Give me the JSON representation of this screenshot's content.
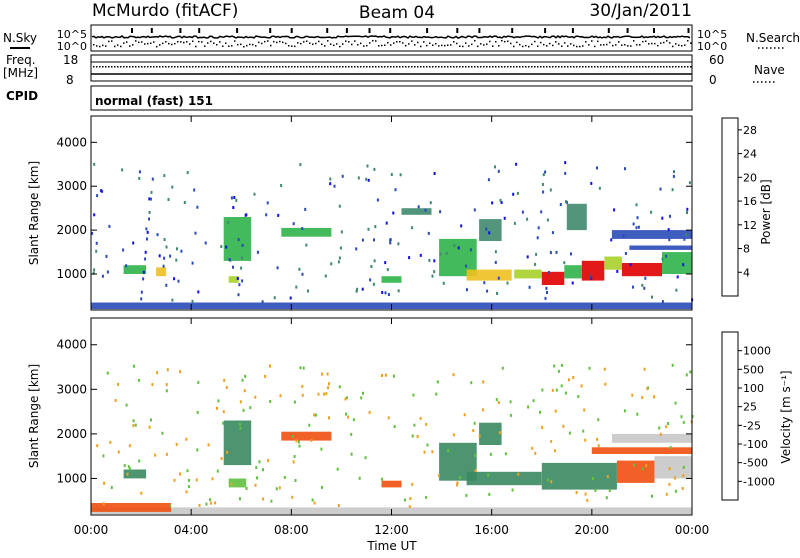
{
  "header": {
    "station": "McMurdo (fitACF)",
    "beam": "Beam 04",
    "date": "30/Jan/2011"
  },
  "strip": {
    "nsky_label": "N.Sky",
    "nsearch_label": "N.Search",
    "left_top_tick": "10^5",
    "left_bottom_tick": "10^0",
    "right_top_tick": "10^5",
    "right_bottom_tick": "10^0",
    "freq_label_1": "Freq.",
    "freq_label_2": "[MHz]",
    "freq_top": "18",
    "freq_bottom": "8",
    "nave_label": "Nave",
    "nave_top": "60",
    "nave_bottom": "0",
    "cpid_label": "CPID",
    "cpid_text": "normal (fast) 151"
  },
  "panels": {
    "ylabel": "Slant Range [km]",
    "xlabel": "Time UT",
    "power_colorbar_label": "Power [dB]",
    "velocity_colorbar_label": "Velocity [m s⁻¹]"
  },
  "colors": {
    "power_scale": [
      "#1010e6",
      "#2a4ab8",
      "#3f8a6e",
      "#2fb34a",
      "#a8d02a",
      "#f0c020",
      "#f08a10",
      "#e84010",
      "#e00000"
    ],
    "velocity_scale": [
      "#e00000",
      "#f05010",
      "#f0a020",
      "#c8c8c8",
      "#b0b0b0",
      "#60c040",
      "#3a8a60",
      "#2a5aa8",
      "#1a3ab0"
    ]
  },
  "chart_data": [
    {
      "type": "heatmap",
      "title": "Power",
      "xlabel": "Time UT",
      "ylabel": "Slant Range [km]",
      "xlim": [
        "00:00",
        "24:00"
      ],
      "ylim": [
        180,
        4600
      ],
      "x_ticks": [
        "00:00",
        "04:00",
        "08:00",
        "12:00",
        "16:00",
        "20:00",
        "00:00"
      ],
      "y_ticks": [
        1000,
        2000,
        3000,
        4000
      ],
      "colorbar": {
        "label": "Power [dB]",
        "ticks": [
          4,
          8,
          12,
          16,
          20,
          24,
          28
        ],
        "range": [
          0,
          30
        ]
      },
      "regions": [
        {
          "t0": 0.0,
          "t1": 24.0,
          "r0": 200,
          "r1": 350,
          "value": 6
        },
        {
          "t0": 1.3,
          "t1": 2.2,
          "r0": 1000,
          "r1": 1200,
          "value": 10
        },
        {
          "t0": 2.6,
          "t1": 3.0,
          "r0": 950,
          "r1": 1150,
          "value": 18
        },
        {
          "t0": 5.3,
          "t1": 6.4,
          "r0": 1300,
          "r1": 2300,
          "value": 10
        },
        {
          "t0": 5.5,
          "t1": 5.9,
          "r0": 800,
          "r1": 950,
          "value": 16
        },
        {
          "t0": 7.6,
          "t1": 9.6,
          "r0": 1850,
          "r1": 2050,
          "value": 10
        },
        {
          "t0": 11.6,
          "t1": 12.4,
          "r0": 800,
          "r1": 950,
          "value": 12
        },
        {
          "t0": 12.4,
          "t1": 13.6,
          "r0": 2350,
          "r1": 2500,
          "value": 8
        },
        {
          "t0": 13.9,
          "t1": 15.4,
          "r0": 950,
          "r1": 1800,
          "value": 12
        },
        {
          "t0": 15.0,
          "t1": 16.8,
          "r0": 850,
          "r1": 1100,
          "value": 18
        },
        {
          "t0": 15.5,
          "t1": 16.4,
          "r0": 1750,
          "r1": 2250,
          "value": 8
        },
        {
          "t0": 16.9,
          "t1": 18.0,
          "r0": 900,
          "r1": 1100,
          "value": 14
        },
        {
          "t0": 18.0,
          "t1": 18.9,
          "r0": 750,
          "r1": 1050,
          "value": 28
        },
        {
          "t0": 18.9,
          "t1": 19.6,
          "r0": 900,
          "r1": 1200,
          "value": 12
        },
        {
          "t0": 19.6,
          "t1": 20.5,
          "r0": 850,
          "r1": 1300,
          "value": 28
        },
        {
          "t0": 20.5,
          "t1": 21.2,
          "r0": 1100,
          "r1": 1400,
          "value": 14
        },
        {
          "t0": 21.2,
          "t1": 22.8,
          "r0": 950,
          "r1": 1250,
          "value": 28
        },
        {
          "t0": 22.8,
          "t1": 24.0,
          "r0": 1000,
          "r1": 1500,
          "value": 12
        },
        {
          "t0": 21.5,
          "t1": 24.0,
          "r0": 1550,
          "r1": 1650,
          "value": 6
        },
        {
          "t0": 20.8,
          "t1": 24.0,
          "r0": 1800,
          "r1": 2000,
          "value": 6
        },
        {
          "t0": 19.0,
          "t1": 19.8,
          "r0": 2000,
          "r1": 2600,
          "value": 8
        }
      ]
    },
    {
      "type": "heatmap",
      "title": "Velocity",
      "xlabel": "Time UT",
      "ylabel": "Slant Range [km]",
      "xlim": [
        "00:00",
        "24:00"
      ],
      "ylim": [
        180,
        4600
      ],
      "x_ticks": [
        "00:00",
        "04:00",
        "08:00",
        "12:00",
        "16:00",
        "20:00",
        "00:00"
      ],
      "y_ticks": [
        1000,
        2000,
        3000,
        4000
      ],
      "colorbar": {
        "label": "Velocity [m s⁻¹]",
        "ticks": [
          1000,
          500,
          100,
          25,
          -25,
          -100,
          -500,
          -1000
        ]
      },
      "regions": [
        {
          "t0": 0.0,
          "t1": 24.0,
          "r0": 200,
          "r1": 350,
          "value": -20
        },
        {
          "t0": 0.0,
          "t1": 3.2,
          "r0": 250,
          "r1": 450,
          "value": -150
        },
        {
          "t0": 1.3,
          "t1": 2.2,
          "r0": 1000,
          "r1": 1200,
          "value": 150
        },
        {
          "t0": 5.3,
          "t1": 6.4,
          "r0": 1300,
          "r1": 2300,
          "value": 150
        },
        {
          "t0": 5.5,
          "t1": 6.2,
          "r0": 800,
          "r1": 1000,
          "value": 60
        },
        {
          "t0": 7.6,
          "t1": 9.6,
          "r0": 1850,
          "r1": 2050,
          "value": -150
        },
        {
          "t0": 11.6,
          "t1": 12.4,
          "r0": 800,
          "r1": 950,
          "value": -150
        },
        {
          "t0": 13.9,
          "t1": 15.4,
          "r0": 950,
          "r1": 1800,
          "value": 300
        },
        {
          "t0": 15.0,
          "t1": 18.0,
          "r0": 850,
          "r1": 1150,
          "value": 300
        },
        {
          "t0": 15.5,
          "t1": 16.4,
          "r0": 1750,
          "r1": 2250,
          "value": 300
        },
        {
          "t0": 18.0,
          "t1": 21.0,
          "r0": 750,
          "r1": 1350,
          "value": 300
        },
        {
          "t0": 21.0,
          "t1": 22.5,
          "r0": 900,
          "r1": 1400,
          "value": -150
        },
        {
          "t0": 22.5,
          "t1": 24.0,
          "r0": 1000,
          "r1": 1500,
          "value": 0
        },
        {
          "t0": 20.0,
          "t1": 24.0,
          "r0": 1550,
          "r1": 1700,
          "value": -150
        },
        {
          "t0": 20.8,
          "t1": 24.0,
          "r0": 1800,
          "r1": 2000,
          "value": 0
        }
      ]
    }
  ]
}
